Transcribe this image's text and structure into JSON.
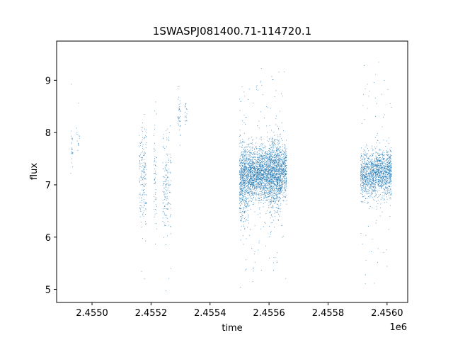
{
  "chart_data": {
    "type": "scatter",
    "title": "1SWASPJ081400.71-114720.1",
    "xlabel": "time",
    "ylabel": "flux",
    "x_offset_label": "1e6",
    "xlim": [
      2454880,
      2456070
    ],
    "ylim": [
      4.75,
      9.75
    ],
    "x_ticks": [
      2454900,
      2455000,
      2455200,
      2455400,
      2455600,
      2455800,
      2456000
    ],
    "x_tick_labels": [
      "",
      "2.4550",
      "2.4552",
      "2.4554",
      "2.4556",
      "2.4558",
      "2.4560"
    ],
    "y_ticks": [
      5,
      6,
      7,
      8,
      9
    ],
    "y_tick_labels": [
      "5",
      "6",
      "7",
      "8",
      "9"
    ],
    "grid": false,
    "marker_color": "#1f77b4",
    "series": [
      {
        "segments": [
          {
            "x_start": 2454928,
            "x_end": 2454935,
            "y_center": 7.75,
            "y_spread": 0.35,
            "count": 25
          },
          {
            "x_start": 2454948,
            "x_end": 2454958,
            "y_center": 7.9,
            "y_spread": 0.3,
            "count": 15
          },
          {
            "x_start": 2455160,
            "x_end": 2455185,
            "y_center": 7.2,
            "y_spread": 0.9,
            "count": 180
          },
          {
            "x_start": 2455210,
            "x_end": 2455220,
            "y_center": 7.2,
            "y_spread": 0.9,
            "count": 60
          },
          {
            "x_start": 2455240,
            "x_end": 2455268,
            "y_center": 7.0,
            "y_spread": 0.9,
            "count": 160
          },
          {
            "x_start": 2455290,
            "x_end": 2455300,
            "y_center": 8.4,
            "y_spread": 0.5,
            "count": 40
          },
          {
            "x_start": 2455315,
            "x_end": 2455322,
            "y_center": 8.4,
            "y_spread": 0.3,
            "count": 20
          },
          {
            "x_start": 2455500,
            "x_end": 2455530,
            "y_center": 7.1,
            "y_spread": 0.7,
            "count": 700
          },
          {
            "x_start": 2455530,
            "x_end": 2455600,
            "y_center": 7.2,
            "y_spread": 0.45,
            "count": 1500
          },
          {
            "x_start": 2455600,
            "x_end": 2455640,
            "y_center": 7.2,
            "y_spread": 0.6,
            "count": 1100
          },
          {
            "x_start": 2455640,
            "x_end": 2455660,
            "y_center": 7.25,
            "y_spread": 0.45,
            "count": 350
          },
          {
            "x_start": 2455910,
            "x_end": 2455960,
            "y_center": 7.2,
            "y_spread": 0.38,
            "count": 700
          },
          {
            "x_start": 2455960,
            "x_end": 2456015,
            "y_center": 7.25,
            "y_spread": 0.4,
            "count": 900
          }
        ]
      }
    ]
  }
}
